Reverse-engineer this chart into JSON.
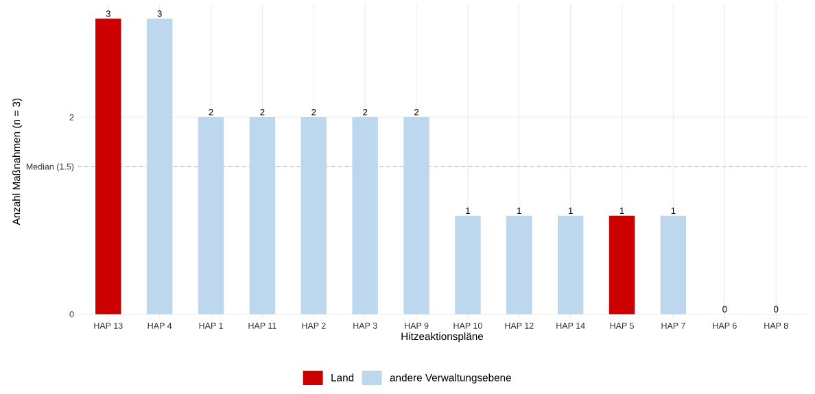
{
  "chart_data": {
    "type": "bar",
    "xlabel": "Hitzeaktionspläne",
    "ylabel": "Anzahl Maßnahmen (n = 3)",
    "categories": [
      "HAP 13",
      "HAP 4",
      "HAP 1",
      "HAP 11",
      "HAP 2",
      "HAP 3",
      "HAP 9",
      "HAP 10",
      "HAP 12",
      "HAP 14",
      "HAP 5",
      "HAP 7",
      "HAP 6",
      "HAP 8"
    ],
    "series": [
      {
        "name": "Land",
        "color": "#cc0000",
        "values": [
          3,
          null,
          null,
          null,
          null,
          null,
          null,
          null,
          null,
          null,
          1,
          null,
          null,
          null
        ]
      },
      {
        "name": "andere Verwaltungsebene",
        "color": "#bdd7ee",
        "values": [
          null,
          3,
          2,
          2,
          2,
          2,
          2,
          1,
          1,
          1,
          null,
          1,
          0,
          0
        ]
      }
    ],
    "ylim": [
      -0.05,
      3.15
    ],
    "yticks": [
      0,
      {
        "value": 1.5,
        "label": "Median (1.5)"
      },
      2
    ],
    "ref_lines": [
      {
        "axis": "y",
        "value": 1.5,
        "color": "#b0b0b0",
        "line_style": "dashed"
      }
    ],
    "data_labels": true,
    "grid": true,
    "legend": "bottom"
  }
}
